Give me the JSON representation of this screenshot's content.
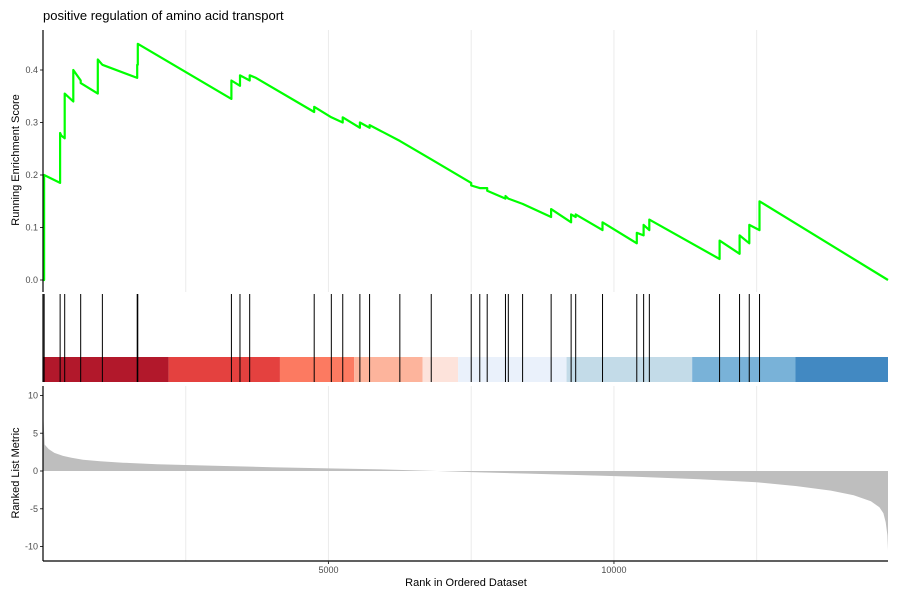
{
  "chart_data": {
    "type": "line",
    "title": "positive regulation of amino acid transport",
    "xlabel": "Rank in Ordered Dataset",
    "xlim": [
      0,
      14800
    ],
    "x_ticks": [
      5000,
      10000
    ],
    "x_tick_labels": [
      "5000",
      "10000"
    ],
    "grid": "vertical",
    "panels": [
      {
        "name": "running-enrichment",
        "ylabel": "Running Enrichment Score",
        "ylim": [
          -0.01,
          0.47
        ],
        "y_ticks": [
          0.0,
          0.1,
          0.2,
          0.3,
          0.4
        ],
        "y_tick_labels": [
          "0.0",
          "0.1",
          "0.2",
          "0.3",
          "0.4"
        ],
        "series": [
          {
            "color": "#00FF00",
            "x": [
              0,
              20,
              20,
              300,
              300,
              320,
              380,
              380,
              530,
              530,
              660,
              660,
              960,
              960,
              1040,
              1040,
              1650,
              1650,
              1660,
              1660,
              3300,
              3300,
              3450,
              3450,
              3620,
              3620,
              3730,
              3730,
              4750,
              4750,
              5050,
              5050,
              5250,
              5250,
              5550,
              5550,
              5720,
              5720,
              6250,
              6250,
              6800,
              6800,
              7500,
              7500,
              7650,
              7650,
              7780,
              7780,
              8100,
              8100,
              8150,
              8150,
              8400,
              8400,
              8900,
              8900,
              9250,
              9250,
              9330,
              9330,
              9800,
              9800,
              10400,
              10400,
              10520,
              10520,
              10620,
              10620,
              11850,
              11850,
              12200,
              12200,
              12370,
              12370,
              12550,
              12550,
              14800
            ],
            "y": [
              0.0,
              0.0,
              0.2,
              0.185,
              0.28,
              0.275,
              0.27,
              0.355,
              0.34,
              0.4,
              0.38,
              0.375,
              0.355,
              0.42,
              0.41,
              0.41,
              0.385,
              0.41,
              0.41,
              0.45,
              0.345,
              0.38,
              0.37,
              0.39,
              0.38,
              0.39,
              0.385,
              0.385,
              0.32,
              0.33,
              0.31,
              0.31,
              0.3,
              0.31,
              0.29,
              0.3,
              0.29,
              0.295,
              0.265,
              0.265,
              0.23,
              0.23,
              0.185,
              0.18,
              0.175,
              0.175,
              0.175,
              0.17,
              0.155,
              0.16,
              0.155,
              0.155,
              0.145,
              0.145,
              0.12,
              0.135,
              0.11,
              0.125,
              0.12,
              0.125,
              0.095,
              0.11,
              0.07,
              0.09,
              0.085,
              0.105,
              0.095,
              0.115,
              0.04,
              0.075,
              0.05,
              0.085,
              0.07,
              0.105,
              0.095,
              0.15,
              0.0
            ]
          }
        ]
      },
      {
        "name": "hit-positions",
        "hits": [
          20,
          300,
          380,
          660,
          1040,
          1650,
          1660,
          3300,
          3450,
          3620,
          4750,
          5050,
          5250,
          5550,
          5720,
          6250,
          6800,
          7500,
          7650,
          7780,
          8100,
          8150,
          8400,
          8900,
          9250,
          9330,
          9800,
          10400,
          10520,
          10620,
          11850,
          12200,
          12370,
          12550
        ],
        "color_bands": [
          {
            "from": 0,
            "to": 2200,
            "color": "#B2182B"
          },
          {
            "from": 2200,
            "to": 4150,
            "color": "#E4413F"
          },
          {
            "from": 4150,
            "to": 5450,
            "color": "#FC7A61"
          },
          {
            "from": 5450,
            "to": 6650,
            "color": "#FDB49C"
          },
          {
            "from": 6650,
            "to": 7270,
            "color": "#FDE3DB"
          },
          {
            "from": 7270,
            "to": 9170,
            "color": "#EAF1FB"
          },
          {
            "from": 9170,
            "to": 11370,
            "color": "#C3DBE8"
          },
          {
            "from": 11370,
            "to": 13180,
            "color": "#79B2D8"
          },
          {
            "from": 13180,
            "to": 14800,
            "color": "#4289C2"
          }
        ]
      },
      {
        "name": "ranked-list-metric",
        "type": "area",
        "ylabel": "Ranked List Metric",
        "ylim": [
          -11.5,
          11
        ],
        "y_ticks": [
          -10,
          -5,
          0,
          5,
          10
        ],
        "y_tick_labels": [
          "-10",
          "-5",
          "0",
          "5",
          "10"
        ],
        "color": "#BEBEBE",
        "x": [
          0,
          30,
          100,
          200,
          350,
          500,
          700,
          1000,
          1400,
          2000,
          3000,
          4000,
          5000,
          6000,
          6900,
          7500,
          8500,
          9500,
          10500,
          11500,
          12500,
          13200,
          13800,
          14200,
          14500,
          14650,
          14720,
          14760,
          14790,
          14800
        ],
        "y": [
          8.0,
          3.5,
          2.9,
          2.4,
          2.0,
          1.75,
          1.5,
          1.3,
          1.1,
          0.9,
          0.7,
          0.5,
          0.35,
          0.2,
          0.0,
          -0.15,
          -0.35,
          -0.55,
          -0.8,
          -1.1,
          -1.5,
          -2.0,
          -2.6,
          -3.2,
          -4.0,
          -4.8,
          -5.6,
          -6.8,
          -8.5,
          -10.5
        ]
      }
    ]
  }
}
